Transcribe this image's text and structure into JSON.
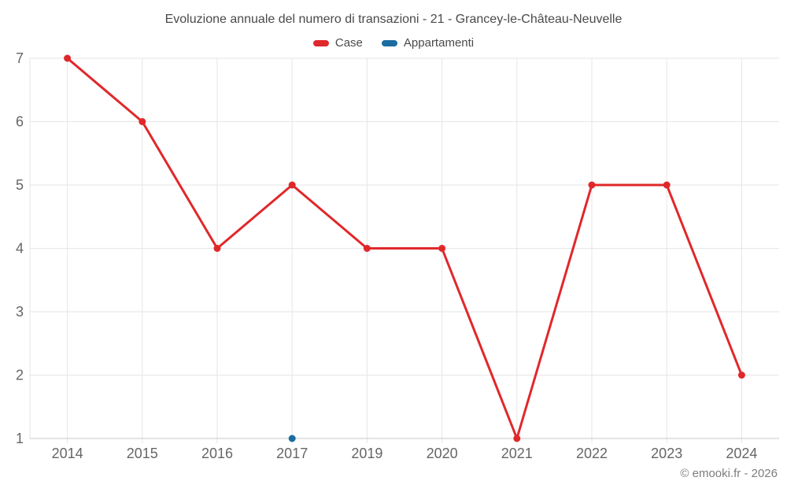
{
  "footer": {
    "text": "© emooki.fr - 2026"
  },
  "chart_data": {
    "type": "line",
    "title": "Evoluzione annuale del numero di transazioni - 21 - Grancey-le-Château-Neuvelle",
    "categories": [
      "2014",
      "2015",
      "2016",
      "2017",
      "2019",
      "2020",
      "2021",
      "2022",
      "2023",
      "2024"
    ],
    "series": [
      {
        "name": "Case",
        "color": "#e0282b",
        "values": [
          7,
          6,
          4,
          5,
          4,
          4,
          1,
          5,
          5,
          2
        ]
      },
      {
        "name": "Appartamenti",
        "color": "#1b6da1",
        "values": [
          null,
          null,
          null,
          1,
          null,
          null,
          null,
          null,
          null,
          null
        ]
      }
    ],
    "xlabel": "",
    "ylabel": "",
    "ylim": [
      1,
      7
    ],
    "yticks": [
      1,
      2,
      3,
      4,
      5,
      6,
      7
    ],
    "grid": true,
    "legend_position": "top"
  },
  "colors": {
    "grid": "#e6e6e6",
    "axis_line": "#c9c9c9",
    "tick_mark": "#d6d6d6",
    "tick_label": "#666666",
    "title_text": "#4a4a4a",
    "footer_text": "#7d7d7d"
  }
}
